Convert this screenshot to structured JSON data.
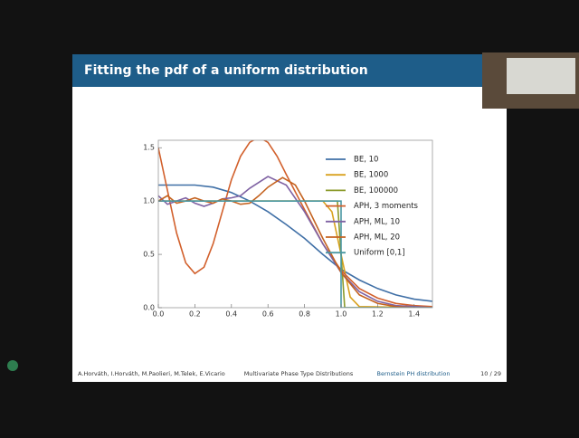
{
  "slide": {
    "title": "Fitting the pdf of a uniform distribution",
    "footer": [
      "A.Horváth, I.Horváth, M.Paolieri, M.Telek, E.Vicario",
      "Multivariate Phase Type Distributions",
      "Bernstein PH distribution",
      "10 / 29"
    ]
  },
  "chart_data": {
    "type": "line",
    "xlim": [
      0,
      1.5
    ],
    "ylim": [
      0,
      1.57
    ],
    "xticks": [
      {
        "value": 0,
        "label": "0.0"
      },
      0.2,
      0.4,
      0.6,
      0.8,
      {
        "value": 1,
        "label": "1.0"
      },
      1.2,
      1.4
    ],
    "yticks": [
      {
        "value": 0,
        "label": "0.0"
      },
      0.5,
      {
        "value": 1,
        "label": "1.0"
      },
      1.5
    ],
    "legend": "right",
    "series": [
      {
        "name": "BE, 10",
        "color": "#3f6fa6",
        "x": [
          0,
          0.1,
          0.2,
          0.3,
          0.4,
          0.5,
          0.6,
          0.7,
          0.8,
          0.9,
          1,
          1.1,
          1.2,
          1.3,
          1.4,
          1.5
        ],
        "values": [
          1.15,
          1.15,
          1.15,
          1.13,
          1.08,
          1,
          0.9,
          0.78,
          0.65,
          0.5,
          0.36,
          0.26,
          0.18,
          0.12,
          0.08,
          0.06
        ]
      },
      {
        "name": "BE, 1000",
        "color": "#d9a21f",
        "x": [
          0,
          0.9,
          0.95,
          1,
          1.05,
          1.1,
          1.5
        ],
        "values": [
          1,
          1,
          0.9,
          0.5,
          0.1,
          0.01,
          0
        ]
      },
      {
        "name": "BE, 100000",
        "color": "#8b9a2b",
        "x": [
          0,
          0.98,
          1,
          1.02,
          1.5
        ],
        "values": [
          1,
          1,
          0.5,
          0,
          0
        ]
      },
      {
        "name": "APH, 3 moments",
        "color": "#d2602c",
        "x": [
          0,
          0.05,
          0.1,
          0.15,
          0.2,
          0.25,
          0.3,
          0.35,
          0.4,
          0.45,
          0.5,
          0.55,
          0.6,
          0.65,
          0.7,
          0.8,
          0.9,
          1,
          1.1,
          1.2,
          1.3,
          1.4,
          1.5
        ],
        "values": [
          1.5,
          1.1,
          0.7,
          0.42,
          0.32,
          0.38,
          0.6,
          0.9,
          1.2,
          1.42,
          1.55,
          1.6,
          1.55,
          1.42,
          1.25,
          0.92,
          0.6,
          0.35,
          0.18,
          0.09,
          0.04,
          0.02,
          0.01
        ]
      },
      {
        "name": "APH, ML, 10",
        "color": "#7f62a3",
        "x": [
          0,
          0.05,
          0.1,
          0.15,
          0.2,
          0.25,
          0.3,
          0.35,
          0.4,
          0.45,
          0.5,
          0.6,
          0.7,
          0.8,
          0.9,
          1,
          1.1,
          1.2,
          1.3,
          1.4,
          1.5
        ],
        "values": [
          1.05,
          0.97,
          1,
          1.03,
          0.98,
          0.95,
          0.98,
          1.02,
          1.03,
          1.05,
          1.12,
          1.23,
          1.15,
          0.9,
          0.6,
          0.33,
          0.15,
          0.06,
          0.02,
          0.01,
          0
        ]
      },
      {
        "name": "APH, ML, 20",
        "color": "#c4621f",
        "x": [
          0,
          0.05,
          0.1,
          0.15,
          0.2,
          0.25,
          0.3,
          0.35,
          0.4,
          0.45,
          0.5,
          0.55,
          0.6,
          0.68,
          0.75,
          0.8,
          0.9,
          1,
          1.1,
          1.2,
          1.3,
          1.4,
          1.5
        ],
        "values": [
          1,
          1.05,
          0.98,
          1,
          1.03,
          1,
          0.98,
          1.02,
          1,
          0.97,
          0.98,
          1.05,
          1.13,
          1.22,
          1.15,
          1,
          0.65,
          0.33,
          0.12,
          0.04,
          0.01,
          0,
          0
        ]
      },
      {
        "name": "Uniform [0,1]",
        "color": "#4b98a3",
        "x": [
          0,
          1,
          1,
          1.5
        ],
        "values": [
          1,
          1,
          0,
          0
        ]
      }
    ]
  }
}
